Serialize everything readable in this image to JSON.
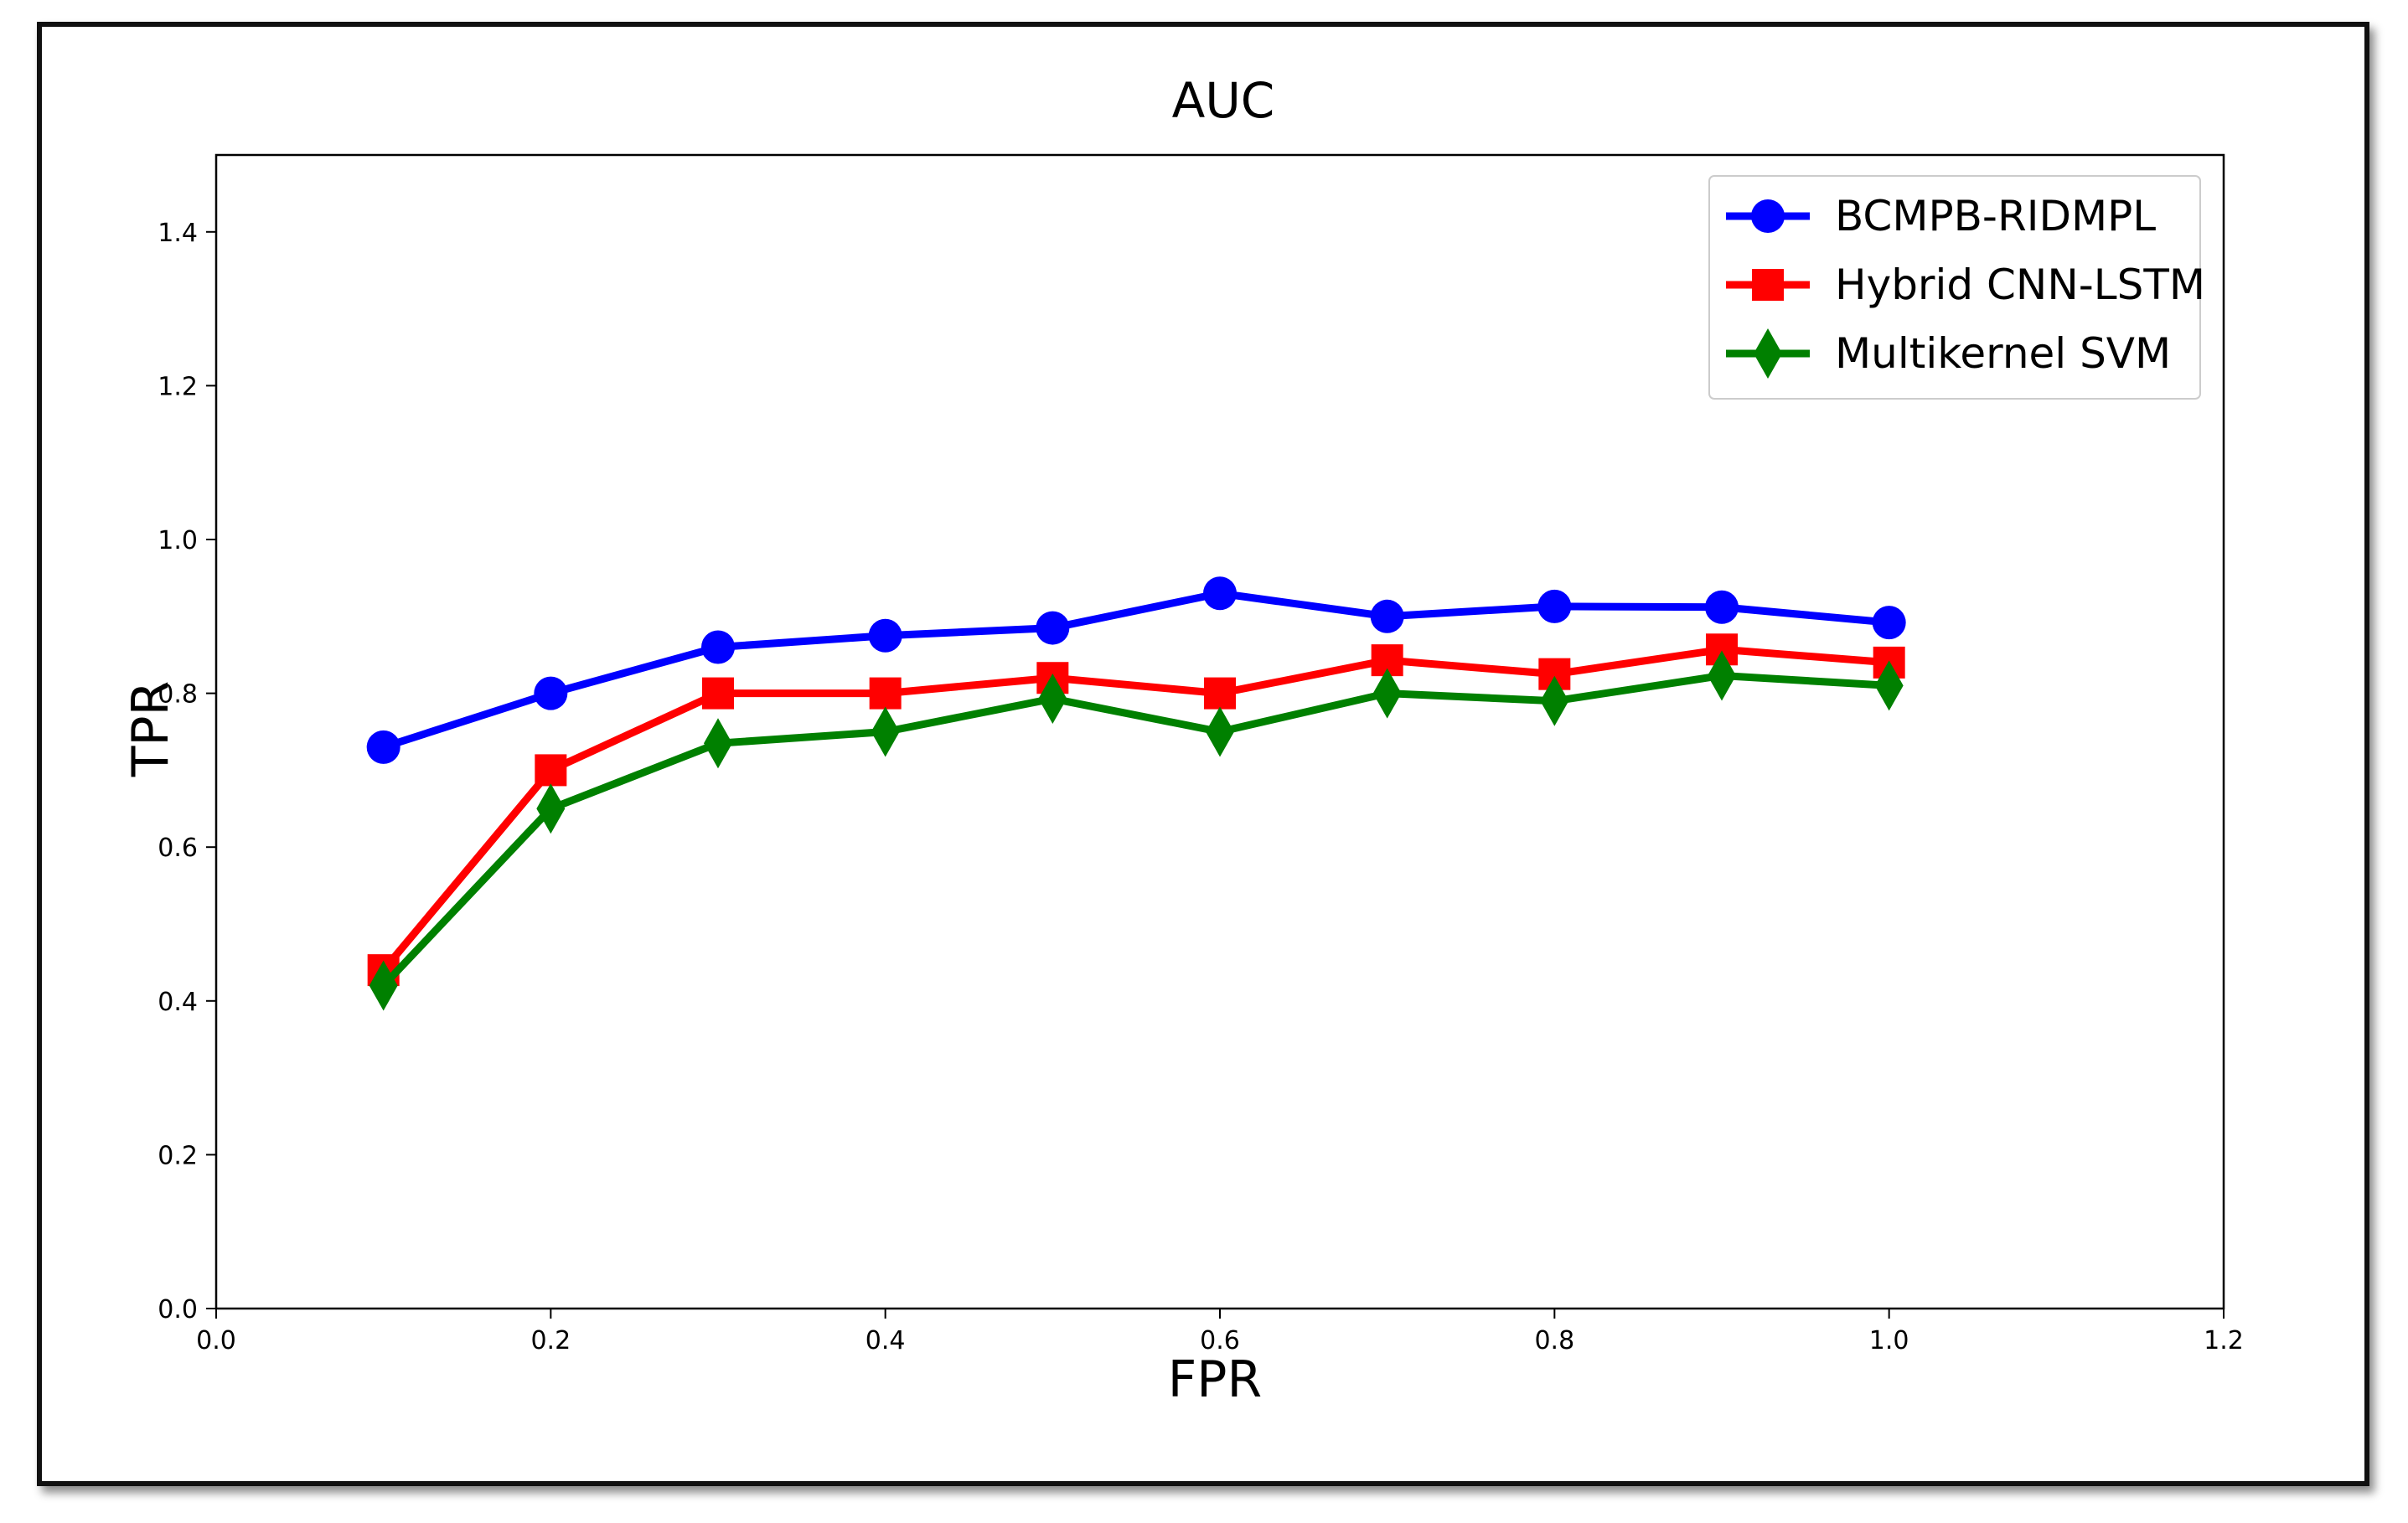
{
  "chart_data": {
    "type": "line",
    "title": "AUC",
    "xlabel": "FPR",
    "ylabel": "TPR",
    "xlim": [
      0.0,
      1.2
    ],
    "ylim": [
      0.0,
      1.5
    ],
    "xticks": [
      "0.0",
      "0.2",
      "0.4",
      "0.6",
      "0.8",
      "1.0",
      "1.2"
    ],
    "yticks": [
      "0.0",
      "0.2",
      "0.4",
      "0.6",
      "0.8",
      "1.0",
      "1.2",
      "1.4"
    ],
    "grid": false,
    "legend_position": "top-right",
    "x": [
      0.1,
      0.2,
      0.3,
      0.4,
      0.5,
      0.6,
      0.7,
      0.8,
      0.9,
      1.0
    ],
    "series": [
      {
        "name": "BCMPB-RIDMPL",
        "color": "#0000ff",
        "marker": "circle",
        "values": [
          0.73,
          0.8,
          0.86,
          0.875,
          0.885,
          0.93,
          0.9,
          0.913,
          0.912,
          0.892
        ]
      },
      {
        "name": "Hybrid CNN-LSTM",
        "color": "#ff0000",
        "marker": "square",
        "values": [
          0.44,
          0.7,
          0.8,
          0.8,
          0.82,
          0.8,
          0.843,
          0.825,
          0.857,
          0.84
        ]
      },
      {
        "name": "Multikernel SVM",
        "color": "#008000",
        "marker": "diamond",
        "values": [
          0.42,
          0.65,
          0.735,
          0.75,
          0.793,
          0.75,
          0.8,
          0.79,
          0.823,
          0.81
        ]
      }
    ]
  }
}
